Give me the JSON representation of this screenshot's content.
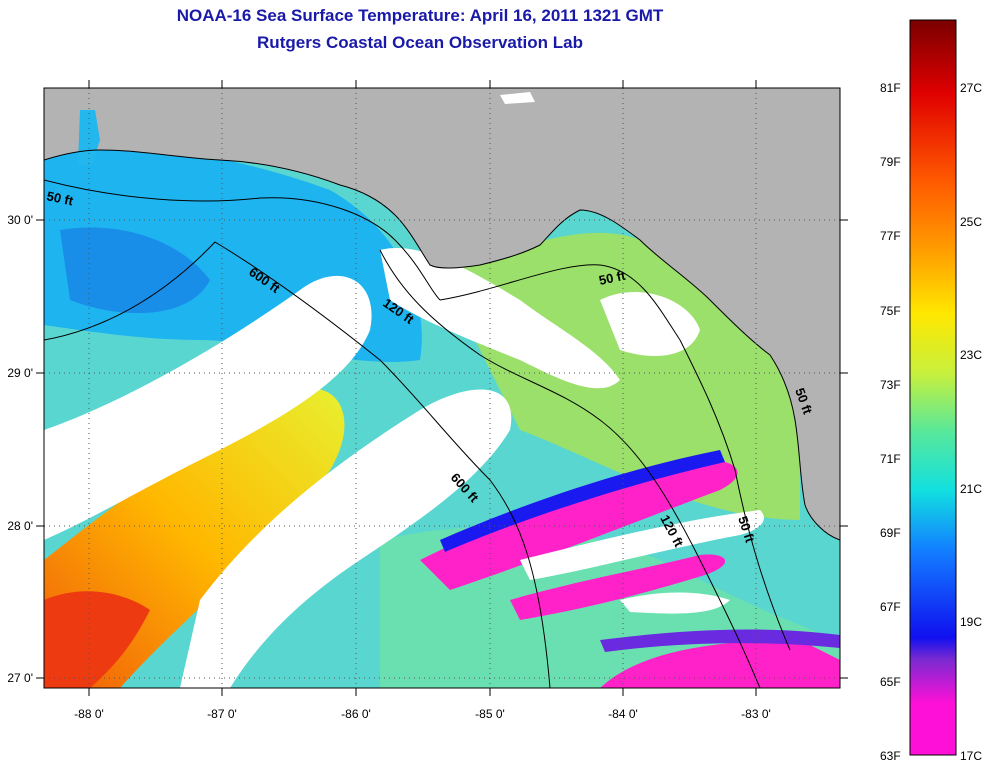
{
  "title": {
    "line1": "NOAA-16 Sea Surface Temperature:  April 16, 2011 1321 GMT",
    "line2": "Rutgers Coastal Ocean Observation Lab"
  },
  "map": {
    "lon_labels": [
      "-88 0'",
      "-87 0'",
      "-86 0'",
      "-85 0'",
      "-84 0'",
      "-83 0'"
    ],
    "lat_labels": [
      "30 0'",
      "29 0'",
      "28 0'",
      "27 0'"
    ],
    "contour_labels": {
      "c50_west": "50 ft",
      "c600_north": "600 ft",
      "c120_north": "120 ft",
      "c50_east": "50 ft",
      "c600_south": "600 ft",
      "c120_south": "120 ft",
      "c50_south": "50 ft",
      "c50_cape": "50 ft"
    },
    "colors": {
      "land": "#b3b3b3",
      "cloud": "#ffffff",
      "water_cool": "#22b8ee",
      "water_warm": "#f6a60e"
    }
  },
  "colorbar": {
    "fahrenheit_labels": [
      "81F",
      "79F",
      "77F",
      "75F",
      "73F",
      "71F",
      "69F",
      "67F",
      "65F",
      "63F"
    ],
    "celsius_labels": [
      "27C",
      "25C",
      "23C",
      "21C",
      "19C",
      "17C"
    ],
    "gradient_colors": [
      "#7a0000",
      "#e00000",
      "#ff5a00",
      "#ffa200",
      "#ffe800",
      "#c8f03c",
      "#58e89a",
      "#12e0e0",
      "#1280ff",
      "#1010f0",
      "#7a2ad0",
      "#ff10d8"
    ]
  }
}
